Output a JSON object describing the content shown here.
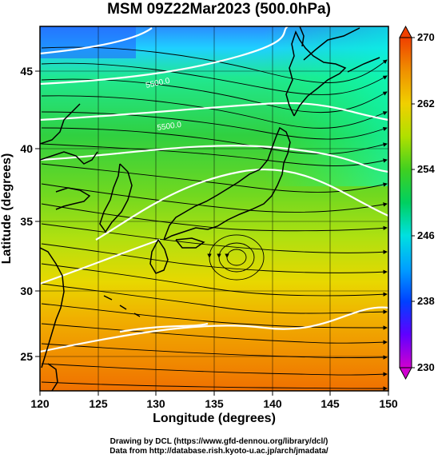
{
  "title": "MSM 09Z22Mar2023 (500.0hPa)",
  "xlabel": "Longitude (degrees)",
  "ylabel": "Latitude  (degrees)",
  "x_ticks": [
    "120",
    "125",
    "130",
    "135",
    "140",
    "145",
    "150"
  ],
  "y_ticks": [
    "25",
    "30",
    "35",
    "40",
    "45"
  ],
  "colorbar": {
    "ticks": [
      "230",
      "238",
      "246",
      "254",
      "262",
      "270"
    ],
    "range": [
      230,
      270
    ]
  },
  "contour_label": "5500.0",
  "credits": {
    "line1": "Drawing by DCL (https://www.gfd-dennou.org/library/dcl/)",
    "line2": "Data from http://database.rish.kyoto-u.ac.jp/arch/jmadata/"
  },
  "chart_data": {
    "type": "heatmap",
    "title": "MSM 09Z22Mar2023 (500.0hPa)",
    "xlabel": "Longitude (degrees)",
    "ylabel": "Latitude  (degrees)",
    "xlim": [
      120,
      150
    ],
    "ylim": [
      22.5,
      47.5
    ],
    "color_scale_range": [
      230,
      270
    ],
    "low_center": {
      "lon": 137,
      "lat": 32.5
    },
    "contour_values": [
      5500.0
    ],
    "overlay": "wind streamlines with arrows, coastlines"
  }
}
